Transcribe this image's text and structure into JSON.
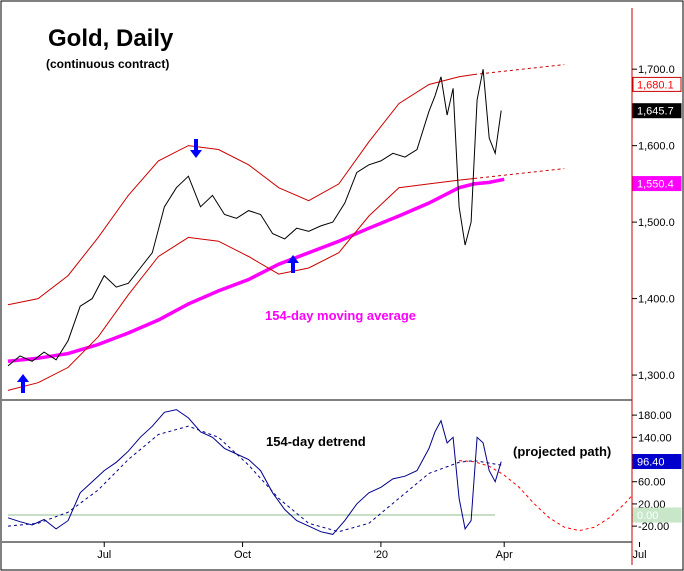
{
  "chart_data": [
    {
      "type": "line",
      "panel": "price",
      "title": "Gold, Daily",
      "subtitle": "(continuous contract)",
      "x_tick_labels": [
        "Jul",
        "Oct",
        "'20",
        "Apr",
        "Jul"
      ],
      "y_tick_labels": [
        "1,300.0",
        "1,400.0",
        "1,500.0",
        "1,600.0",
        "1,700.0"
      ],
      "y_ticks": [
        1300,
        1400,
        1500,
        1600,
        1700
      ],
      "ylim": [
        1270,
        1780
      ],
      "x_range_days": [
        0,
        415
      ],
      "x_tick_days": [
        64,
        156,
        248,
        330,
        420
      ],
      "value_badges": [
        {
          "label": "1,680.1",
          "value": 1680.1,
          "bg": "#ffffff",
          "fg": "#ff0000"
        },
        {
          "label": "1,645.7",
          "value": 1645.7,
          "bg": "#000000",
          "fg": "#ffffff"
        },
        {
          "label": "1,550.4",
          "value": 1550.4,
          "bg": "#ff00ff",
          "fg": "#ffffff"
        }
      ],
      "annotation_ma": "154-day moving average",
      "series": [
        {
          "name": "154-day moving average",
          "color": "#ff00ff",
          "x": [
            0,
            20,
            40,
            60,
            80,
            100,
            120,
            140,
            160,
            180,
            200,
            220,
            240,
            260,
            280,
            300,
            310,
            320,
            330
          ],
          "values": [
            1318,
            1322,
            1328,
            1340,
            1355,
            1372,
            1393,
            1410,
            1425,
            1445,
            1460,
            1475,
            1492,
            1508,
            1525,
            1545,
            1550,
            1552,
            1556
          ]
        },
        {
          "name": "upper envelope",
          "color": "#cc0000",
          "x": [
            0,
            20,
            40,
            60,
            80,
            100,
            120,
            140,
            160,
            180,
            200,
            220,
            240,
            260,
            280,
            300,
            310
          ],
          "values": [
            1392,
            1400,
            1430,
            1480,
            1535,
            1580,
            1600,
            1595,
            1575,
            1545,
            1528,
            1550,
            1605,
            1655,
            1680,
            1690,
            1693
          ]
        },
        {
          "name": "lower envelope",
          "color": "#cc0000",
          "x": [
            0,
            20,
            40,
            60,
            80,
            100,
            120,
            140,
            160,
            180,
            200,
            220,
            240,
            260,
            280,
            300,
            310
          ],
          "values": [
            1280,
            1290,
            1310,
            1350,
            1405,
            1455,
            1480,
            1475,
            1455,
            1432,
            1440,
            1460,
            1508,
            1545,
            1550,
            1555,
            1557
          ]
        },
        {
          "name": "projected upper envelope",
          "color": "#cc0000",
          "dashed": true,
          "x": [
            310,
            370
          ],
          "values": [
            1693,
            1706
          ]
        },
        {
          "name": "projected lower envelope",
          "color": "#cc0000",
          "dashed": true,
          "x": [
            310,
            370
          ],
          "values": [
            1557,
            1570
          ]
        },
        {
          "name": "gold price",
          "color": "#000000",
          "x": [
            0,
            8,
            16,
            24,
            32,
            40,
            48,
            56,
            64,
            72,
            80,
            88,
            96,
            104,
            112,
            120,
            128,
            136,
            144,
            152,
            160,
            168,
            176,
            184,
            192,
            200,
            208,
            216,
            224,
            232,
            240,
            248,
            256,
            264,
            272,
            280,
            284,
            288,
            292,
            296,
            300,
            304,
            308,
            312,
            316,
            320,
            324,
            328
          ],
          "values": [
            1312,
            1325,
            1318,
            1330,
            1320,
            1345,
            1390,
            1400,
            1430,
            1415,
            1420,
            1440,
            1460,
            1520,
            1545,
            1560,
            1520,
            1535,
            1510,
            1505,
            1515,
            1510,
            1485,
            1478,
            1492,
            1488,
            1495,
            1500,
            1525,
            1565,
            1575,
            1580,
            1590,
            1585,
            1595,
            1645,
            1665,
            1690,
            1640,
            1675,
            1520,
            1470,
            1500,
            1660,
            1700,
            1610,
            1590,
            1646
          ]
        }
      ]
    },
    {
      "type": "line",
      "panel": "oscillator",
      "title": "154-day detrend",
      "annotation_projection": "(projected path)",
      "y_tick_labels": [
        "-20.00",
        "0.00",
        "20.00",
        "60.00",
        "100.00",
        "140.00",
        "180.00"
      ],
      "y_ticks": [
        -20,
        0,
        20,
        60,
        100,
        140,
        180
      ],
      "ylim": [
        -45,
        200
      ],
      "value_badges": [
        {
          "label": "96.40",
          "value": 96.4,
          "bg": "#0000cc",
          "fg": "#ffffff"
        },
        {
          "label": "0.00",
          "value": 0,
          "bg": "#c8e6c8",
          "fg": "#ffffff"
        }
      ],
      "series": [
        {
          "name": "154-day detrend",
          "color": "#00008b",
          "x": [
            0,
            8,
            16,
            24,
            32,
            40,
            48,
            56,
            64,
            72,
            80,
            88,
            96,
            104,
            112,
            120,
            128,
            136,
            144,
            152,
            160,
            168,
            176,
            184,
            192,
            200,
            208,
            216,
            224,
            232,
            240,
            248,
            256,
            264,
            272,
            280,
            284,
            288,
            292,
            296,
            300,
            304,
            308,
            312,
            316,
            320,
            324,
            328
          ],
          "values": [
            -5,
            -12,
            -18,
            -8,
            -25,
            -10,
            40,
            60,
            80,
            95,
            115,
            140,
            160,
            185,
            190,
            175,
            150,
            140,
            120,
            110,
            100,
            80,
            40,
            10,
            -10,
            -20,
            -30,
            -35,
            -10,
            20,
            40,
            50,
            65,
            70,
            80,
            120,
            150,
            170,
            130,
            140,
            30,
            -25,
            -10,
            140,
            130,
            80,
            60,
            96
          ]
        },
        {
          "name": "cycle",
          "color": "#00008b",
          "dashed": true,
          "x": [
            0,
            20,
            40,
            60,
            80,
            100,
            120,
            140,
            160,
            180,
            200,
            220,
            240,
            260,
            280,
            300,
            310,
            328
          ],
          "values": [
            -20,
            -15,
            5,
            45,
            100,
            145,
            160,
            140,
            90,
            30,
            -15,
            -30,
            -15,
            30,
            75,
            95,
            98,
            90
          ]
        },
        {
          "name": "projected path",
          "color": "#ff0000",
          "dashed": true,
          "x": [
            300,
            310,
            320,
            330,
            340,
            350,
            360,
            370,
            380,
            390,
            400,
            410,
            415
          ],
          "values": [
            98,
            96,
            88,
            72,
            50,
            20,
            -5,
            -22,
            -28,
            -22,
            -5,
            20,
            35
          ]
        }
      ]
    }
  ]
}
